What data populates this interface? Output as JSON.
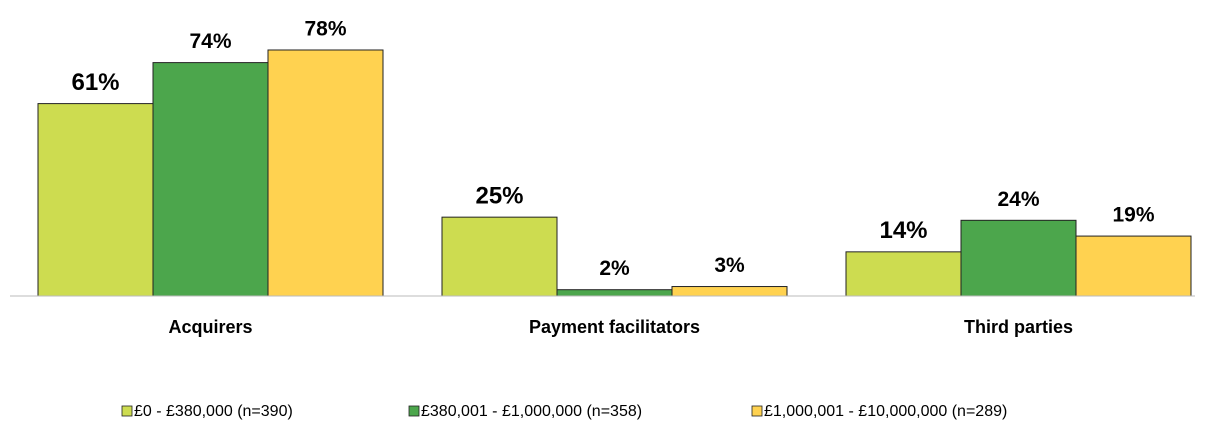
{
  "chart_data": {
    "type": "bar",
    "categories": [
      "Acquirers",
      "Payment facilitators",
      "Third parties"
    ],
    "series": [
      {
        "name": "£0 - £380,000 (n=390)",
        "color": "#cddc50",
        "values": [
          61,
          25,
          14
        ],
        "value_labels": [
          "61%",
          "25%",
          "14%"
        ]
      },
      {
        "name": "£380,001 - £1,000,000 (n=358)",
        "color": "#4ca64c",
        "values": [
          74,
          2,
          24
        ],
        "value_labels": [
          "74%",
          "2%",
          "24%"
        ]
      },
      {
        "name": "£1,000,001 - £10,000,000 (n=289)",
        "color": "#ffd250",
        "values": [
          78,
          3,
          19
        ],
        "value_labels": [
          "78%",
          "3%",
          "19%"
        ]
      }
    ],
    "legend": "bottom"
  }
}
